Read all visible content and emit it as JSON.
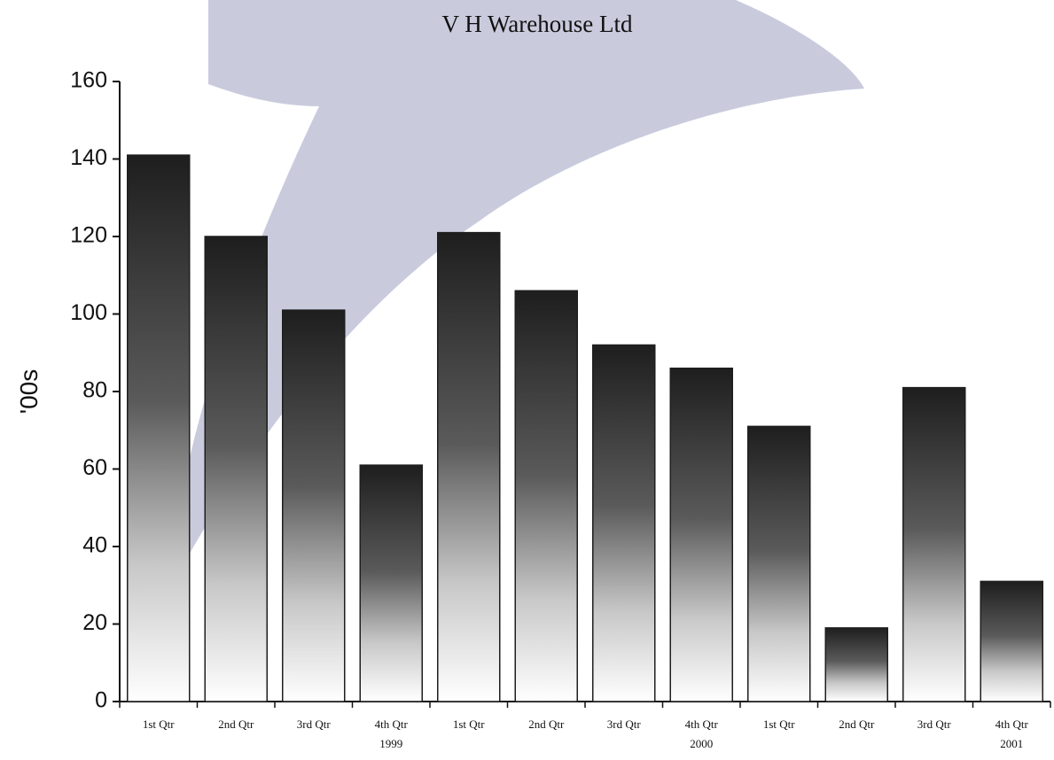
{
  "chart_data": {
    "type": "bar",
    "title": "V H Warehouse Ltd",
    "y_label": "'00s",
    "categories": [
      "1st Qtr",
      "2nd Qtr",
      "3rd Qtr",
      "4th Qtr",
      "1st Qtr",
      "2nd Qtr",
      "3rd Qtr",
      "4th Qtr",
      "1st Qtr",
      "2nd Qtr",
      "3rd Qtr",
      "4th Qtr"
    ],
    "x_groups": [
      "1999",
      "2000",
      "2001"
    ],
    "values": [
      141,
      120,
      101,
      61,
      121,
      106,
      92,
      86,
      71,
      19,
      81,
      31
    ],
    "color": "#1e1e1e",
    "ylim": [
      0,
      160
    ],
    "yticks": [
      0,
      20,
      40,
      60,
      80,
      100,
      120,
      140,
      160
    ],
    "grid": false
  }
}
